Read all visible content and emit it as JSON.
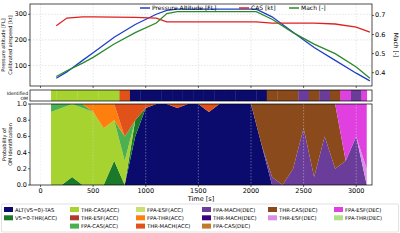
{
  "chart_data": [
    {
      "type": "line",
      "x": [
        150,
        250,
        400,
        500,
        700,
        900,
        1100,
        1200,
        1300,
        1500,
        1700,
        1900,
        2050,
        2200,
        2400,
        2600,
        2800,
        3000,
        3130
      ],
      "xlim": [
        -100,
        3150
      ],
      "xticks": [
        0,
        500,
        1000,
        1500,
        2000,
        2500,
        3000
      ],
      "tick_labels": "y",
      "ylabel": [
        "Pressure altitude [FL]",
        "Calibrated airspeed [kt]"
      ],
      "y2label": "Mach [-]",
      "ylim": [
        20,
        340
      ],
      "yticks": [
        100,
        200,
        300
      ],
      "y2lim": [
        0.33,
        0.76
      ],
      "y2ticks": [
        0.4,
        0.5,
        0.6,
        0.7
      ],
      "grid": true,
      "legend": "top",
      "series": [
        {
          "name": "Pressure Altitude [FL]",
          "color": "#1f3fc8",
          "values": [
            50,
            75,
            120,
            150,
            210,
            260,
            300,
            315,
            320,
            320,
            320,
            320,
            320,
            290,
            230,
            170,
            120,
            70,
            40
          ]
        },
        {
          "name": "CAS [kt]",
          "color": "#e02020",
          "values": [
            255,
            285,
            290,
            290,
            289,
            288,
            285,
            270,
            270,
            270,
            270,
            270,
            270,
            265,
            265,
            265,
            262,
            250,
            230
          ]
        },
        {
          "name": "Mach [-]",
          "color": "#2a8a2a",
          "axis": "y2",
          "values": [
            0.38,
            0.41,
            0.45,
            0.48,
            0.55,
            0.61,
            0.66,
            0.71,
            0.72,
            0.72,
            0.72,
            0.72,
            0.72,
            0.68,
            0.61,
            0.55,
            0.5,
            0.43,
            0.37
          ]
        }
      ]
    },
    {
      "type": "area",
      "stacked": true,
      "x": [
        100,
        200,
        300,
        400,
        500,
        600,
        700,
        800,
        900,
        1000,
        1100,
        1200,
        1300,
        1400,
        1500,
        1600,
        1700,
        1800,
        1900,
        2000,
        2100,
        2200,
        2300,
        2400,
        2500,
        2600,
        2700,
        2800,
        2900,
        3000,
        3100
      ],
      "xlim": [
        -100,
        3150
      ],
      "xticks": [
        0,
        500,
        1000,
        1500,
        2000,
        2500,
        3000
      ],
      "ylim": [
        0,
        1
      ],
      "yticks": [
        {
          "value": 0,
          "label": "0.0"
        },
        {
          "value": 0.2,
          "label": "0.2"
        },
        {
          "value": 0.4,
          "label": "0.4"
        },
        {
          "value": 0.6,
          "label": "0.6"
        },
        {
          "value": 0.8,
          "label": "0.8"
        },
        {
          "value": 1,
          "label": "1.0"
        }
      ],
      "xlabel": "Time [s]",
      "ylabel": [
        "Probability of",
        "OM Identification"
      ],
      "strip_label": [
        "Identified",
        "OM"
      ],
      "grid": true,
      "legend": "bottom",
      "series": [
        {
          "name": "ALT(VS=0)-TAS",
          "color": "#0b0b6e",
          "values": [
            0,
            0,
            0,
            0,
            0,
            0,
            0,
            0,
            0.6,
            0.95,
            1,
            1,
            0.95,
            1,
            1,
            0.9,
            1,
            1,
            1,
            1,
            0.5,
            0,
            0,
            0,
            0,
            0,
            0,
            0,
            0,
            0,
            0
          ]
        },
        {
          "name": "VS=0-THR(ACC)",
          "color": "#1b7a2a",
          "values": [
            0,
            0,
            0.1,
            0,
            0,
            0,
            0.3,
            0,
            0.2,
            0,
            0,
            0,
            0,
            0,
            0,
            0,
            0,
            0,
            0,
            0,
            0,
            0,
            0,
            0,
            0,
            0,
            0,
            0,
            0,
            0,
            0
          ]
        },
        {
          "name": "THR-CAS(ACC)",
          "color": "#a6d32f",
          "values": [
            0.9,
            0.95,
            0.9,
            0.95,
            0.9,
            0.7,
            0.5,
            0.3,
            0,
            0,
            0,
            0,
            0,
            0,
            0,
            0,
            0,
            0,
            0,
            0,
            0,
            0,
            0,
            0,
            0,
            0,
            0,
            0,
            0,
            0,
            0
          ]
        },
        {
          "name": "THR-ESF(ACC)",
          "color": "#b03a2e",
          "values": [
            0,
            0,
            0,
            0,
            0,
            0,
            0,
            0,
            0,
            0,
            0,
            0,
            0,
            0,
            0,
            0,
            0,
            0,
            0,
            0,
            0,
            0,
            0,
            0,
            0,
            0,
            0,
            0,
            0,
            0,
            0
          ]
        },
        {
          "name": "FPA-CAS(ACC)",
          "color": "#4caf50",
          "values": [
            0.1,
            0.05,
            0,
            0.05,
            0,
            0,
            0,
            0.3,
            0,
            0,
            0,
            0,
            0,
            0,
            0,
            0,
            0,
            0,
            0,
            0,
            0,
            0,
            0,
            0,
            0,
            0,
            0,
            0,
            0,
            0,
            0
          ]
        },
        {
          "name": "FPA-ESF(ACC)",
          "color": "#c8e06e",
          "values": [
            0,
            0,
            0,
            0,
            0,
            0,
            0,
            0,
            0,
            0,
            0,
            0,
            0,
            0,
            0,
            0,
            0,
            0,
            0,
            0,
            0,
            0,
            0,
            0,
            0,
            0,
            0,
            0,
            0,
            0,
            0
          ]
        },
        {
          "name": "FPA-THR(ACC)",
          "color": "#ff7f0e",
          "values": [
            0,
            0,
            0,
            0,
            0.1,
            0.3,
            0.2,
            0,
            0,
            0,
            0,
            0,
            0,
            0,
            0,
            0,
            0,
            0,
            0,
            0,
            0,
            0,
            0,
            0,
            0,
            0,
            0,
            0,
            0,
            0,
            0
          ]
        },
        {
          "name": "THR-MACH(ACC)",
          "color": "#e0521a",
          "values": [
            0,
            0,
            0,
            0,
            0,
            0,
            0,
            0.4,
            0.2,
            0.05,
            0,
            0,
            0.05,
            0,
            0,
            0.1,
            0,
            0,
            0,
            0,
            0,
            0,
            0,
            0,
            0,
            0,
            0,
            0,
            0,
            0,
            0
          ]
        },
        {
          "name": "FPA-MACH(DEC)",
          "color": "#6a3d9a",
          "values": [
            0,
            0,
            0,
            0,
            0,
            0,
            0,
            0,
            0,
            0,
            0,
            0,
            0,
            0,
            0,
            0,
            0,
            0,
            0,
            0,
            0,
            0.1,
            0,
            0.2,
            0.7,
            0.1,
            0.6,
            0.2,
            0.3,
            0.6,
            0
          ]
        },
        {
          "name": "THR-MACH(DEC)",
          "color": "#3f007d",
          "values": [
            0,
            0,
            0,
            0,
            0,
            0,
            0,
            0,
            0,
            0,
            0,
            0,
            0,
            0,
            0,
            0,
            0,
            0,
            0,
            0,
            0,
            0,
            0,
            0,
            0,
            0,
            0,
            0,
            0,
            0,
            0
          ]
        },
        {
          "name": "FPA-CAS(DEC)",
          "color": "#c07a2a",
          "values": [
            0,
            0,
            0,
            0,
            0,
            0,
            0,
            0,
            0,
            0,
            0,
            0,
            0,
            0,
            0,
            0,
            0,
            0,
            0,
            0,
            0,
            0,
            0,
            0,
            0,
            0,
            0,
            0,
            0,
            0,
            0
          ]
        },
        {
          "name": "THR-CAS(DEC)",
          "color": "#8b4a1c",
          "values": [
            0,
            0,
            0,
            0,
            0,
            0,
            0,
            0,
            0,
            0,
            0,
            0,
            0,
            0,
            0,
            0,
            0,
            0,
            0,
            0,
            0.5,
            0.9,
            1,
            0.8,
            0.3,
            0.9,
            0.4,
            0.8,
            0,
            0,
            0
          ]
        },
        {
          "name": "THR-ESF(DEC)",
          "color": "#d98ee8",
          "values": [
            0,
            0,
            0,
            0,
            0,
            0,
            0,
            0,
            0,
            0,
            0,
            0,
            0,
            0,
            0,
            0,
            0,
            0,
            0,
            0,
            0,
            0,
            0,
            0,
            0,
            0,
            0,
            0,
            0,
            0,
            0.2
          ]
        },
        {
          "name": "FPA-ESF(DEC)",
          "color": "#e040e0",
          "values": [
            0,
            0,
            0,
            0,
            0,
            0,
            0,
            0,
            0,
            0,
            0,
            0,
            0,
            0,
            0,
            0,
            0,
            0,
            0,
            0,
            0,
            0,
            0,
            0,
            0,
            0,
            0,
            0,
            0.7,
            0.4,
            0.8
          ]
        },
        {
          "name": "FPA-THR(DEC)",
          "color": "#b2df8a",
          "values": [
            0,
            0,
            0,
            0,
            0,
            0,
            0,
            0,
            0,
            0,
            0,
            0,
            0,
            0,
            0,
            0,
            0,
            0,
            0,
            0,
            0,
            0,
            0,
            0,
            0,
            0,
            0,
            0,
            0,
            0,
            0
          ]
        }
      ]
    }
  ]
}
